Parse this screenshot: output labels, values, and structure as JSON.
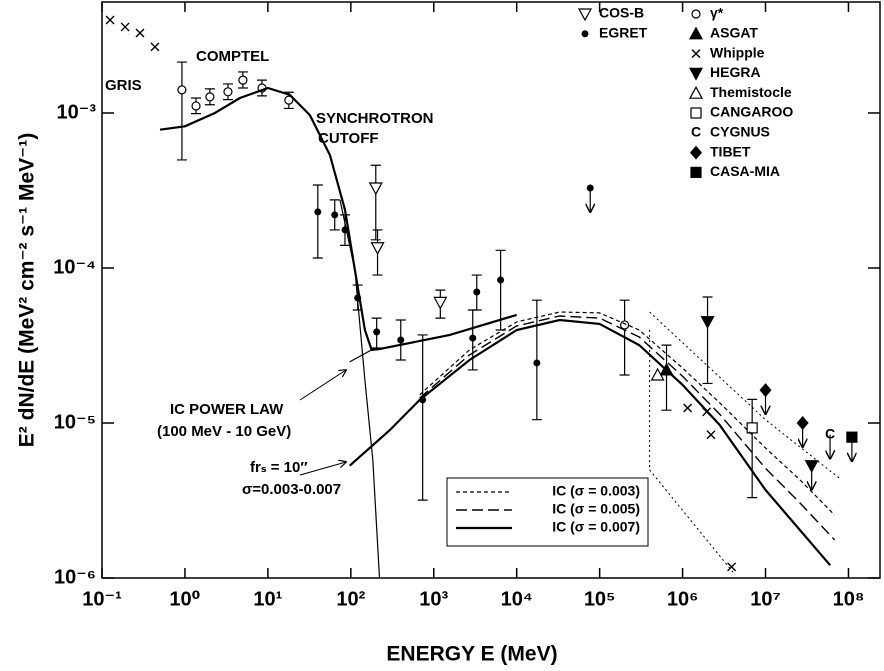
{
  "chart_data": {
    "type": "scatter",
    "x_label": "ENERGY  E  (MeV)",
    "y_label": "E² dN/dE (MeV² cm⁻² s⁻¹ MeV⁻¹)",
    "log_x": true,
    "log_y": true,
    "xlim": [
      0.1,
      240000000
    ],
    "ylim": [
      1e-06,
      0.0052
    ],
    "xticks": [
      {
        "value": 0.1,
        "label": "10⁻¹"
      },
      {
        "value": 1,
        "label": "10⁰"
      },
      {
        "value": 10,
        "label": "10¹"
      },
      {
        "value": 100,
        "label": "10²"
      },
      {
        "value": 1000,
        "label": "10³"
      },
      {
        "value": 10000,
        "label": "10⁴"
      },
      {
        "value": 100000,
        "label": "10⁵"
      },
      {
        "value": 1000000,
        "label": "10⁶"
      },
      {
        "value": 10000000,
        "label": "10⁷"
      },
      {
        "value": 100000000,
        "label": "10⁸"
      }
    ],
    "yticks": [
      {
        "value": 0.001,
        "label": "10⁻³"
      },
      {
        "value": 0.0001,
        "label": "10⁻⁴"
      },
      {
        "value": 1e-05,
        "label": "10⁻⁵"
      },
      {
        "value": 1e-06,
        "label": "10⁻⁶"
      }
    ],
    "annotations": [
      "GRIS",
      "COMPTEL",
      "SYNCHROTRON",
      "CUTOFF",
      "IC POWER LAW",
      "(100 MeV - 10 GeV)",
      "frₛ = 10″",
      "σ=0.003-0.007"
    ],
    "series": [
      {
        "name": "COS-B",
        "type": "scatter",
        "marker": "triangle-down-open",
        "color": "#000",
        "x": [
          200,
          210,
          1200
        ],
        "values": [
          0.000328,
          0.000135,
          6e-05
        ],
        "yerr_low": [
          0.000152,
          9e-05,
          4.75e-05
        ],
        "yerr_high": [
          0.00046,
          0.000176,
          7.2e-05
        ]
      },
      {
        "name": "EGRET",
        "type": "scatter",
        "marker": "dot",
        "color": "#000",
        "x": [
          40,
          64,
          85,
          121,
          205,
          400,
          735,
          2950,
          3300,
          6400,
          17500,
          77000
        ],
        "values": [
          0.00023,
          0.00022,
          0.000176,
          6.4e-05,
          3.87e-05,
          3.43e-05,
          1.41e-05,
          3.53e-05,
          7e-05,
          8.37e-05,
          2.44e-05,
          0.000328
        ],
        "yerr_low": [
          0.000116,
          0.000176,
          0.00014,
          5.36e-05,
          3.05e-05,
          2.55e-05,
          3.18e-06,
          2.2e-05,
          5.36e-05,
          3.98e-05,
          1.05e-05,
          null
        ],
        "yerr_high": [
          0.000343,
          0.000275,
          0.00022,
          7.76e-05,
          4.75e-05,
          4.62e-05,
          3.7e-05,
          5.36e-05,
          9e-05,
          0.00013,
          6.2e-05,
          null
        ],
        "upper_limits": [
          false,
          false,
          false,
          false,
          false,
          false,
          false,
          false,
          false,
          false,
          false,
          true
        ]
      },
      {
        "name": "γ*",
        "type": "scatter",
        "marker": "circle-open",
        "color": "#000",
        "x": [
          200000
        ],
        "values": [
          4.29e-05
        ],
        "yerr_low": [
          2.04e-05
        ],
        "yerr_high": [
          6.2e-05
        ]
      },
      {
        "name": "ASGAT",
        "type": "scatter",
        "marker": "triangle-filled",
        "color": "#000",
        "x": [
          640000
        ],
        "values": [
          2.2e-05
        ],
        "yerr_low": [
          1.21e-05
        ],
        "yerr_high": [
          3.18e-05
        ]
      },
      {
        "name": "Whipple",
        "type": "scatter",
        "marker": "x",
        "color": "#000",
        "x": [
          1150000,
          1950000,
          2200000,
          3900000
        ],
        "values": [
          1.25e-05,
          1.18e-05,
          8.4e-06,
          1.18e-06
        ]
      },
      {
        "name": "HEGRA",
        "type": "scatter",
        "marker": "triangle-down-filled",
        "color": "#000",
        "x": [
          2000000,
          36000000
        ],
        "values": [
          4.5e-05,
          5.3e-06
        ],
        "yerr_low": [
          1.8e-05,
          null
        ],
        "yerr_high": [
          6.5e-05,
          null
        ],
        "upper_limits": [
          false,
          true
        ]
      },
      {
        "name": "Themistocle",
        "type": "scatter",
        "marker": "triangle-open",
        "color": "#000",
        "x": [
          500000
        ],
        "values": [
          2.04e-05
        ]
      },
      {
        "name": "CANGAROO",
        "type": "scatter",
        "marker": "square-open",
        "color": "#000",
        "x": [
          6900000
        ],
        "values": [
          9.3e-06
        ],
        "yerr_low": [
          3.3e-06
        ],
        "yerr_high": [
          1.42e-05
        ]
      },
      {
        "name": "CYGNUS",
        "type": "scatter",
        "marker": "C",
        "color": "#000",
        "x": [
          60000000
        ],
        "values": [
          8.4e-06
        ],
        "upper_limits": [
          true
        ]
      },
      {
        "name": "TIBET",
        "type": "scatter",
        "marker": "diamond-filled",
        "color": "#000",
        "x": [
          10000000,
          28000000
        ],
        "values": [
          1.63e-05,
          1e-05
        ],
        "upper_limits": [
          true,
          true
        ]
      },
      {
        "name": "CASA-MIA",
        "type": "scatter",
        "marker": "square-filled",
        "color": "#000",
        "x": [
          110000000
        ],
        "values": [
          8.1e-06
        ],
        "upper_limits": [
          true
        ]
      },
      {
        "type": "scatter",
        "marker": "x",
        "color": "#000",
        "x": [
          0.125,
          0.19,
          0.287,
          0.435
        ],
        "values": [
          0.00398,
          0.00359,
          0.00328,
          0.00267
        ]
      },
      {
        "type": "scatter",
        "marker": "circle-open",
        "color": "#000",
        "x": [
          0.92,
          1.36,
          2.0,
          3.3,
          5.0,
          8.5,
          17.9
        ],
        "values": [
          0.00141,
          0.00111,
          0.00127,
          0.00137,
          0.00163,
          0.00145,
          0.00121
        ],
        "yerr_low": [
          0.000498,
          0.00099,
          0.00113,
          0.00122,
          0.00145,
          0.00129,
          0.00107
        ],
        "yerr_high": [
          0.00213,
          0.00125,
          0.00143,
          0.00154,
          0.00184,
          0.00163,
          0.00136
        ]
      },
      {
        "type": "line",
        "style": "solid",
        "width": 2.2,
        "color": "#000",
        "x": [
          0.5,
          1,
          2.3,
          4.6,
          10,
          18.4,
          32,
          56,
          85,
          112,
          148,
          178,
          222,
          1560,
          10000
        ],
        "values": [
          0.00078,
          0.00082,
          0.001,
          0.00125,
          0.00145,
          0.00131,
          0.00097,
          0.000536,
          0.000237,
          9.7e-05,
          3.98e-05,
          2.96e-05,
          3e-05,
          3.7e-05,
          4.98e-05
        ]
      },
      {
        "type": "line",
        "style": "solid",
        "width": 1.2,
        "color": "#000",
        "x": [
          74,
          112,
          148,
          184,
          222,
          null,
          97,
          178
        ],
        "values": [
          0.000275,
          9.7e-05,
          1.89e-05,
          5.8e-06,
          1e-06,
          null,
          2.48e-05,
          2.96e-05
        ]
      },
      {
        "type": "line",
        "style": "dotted",
        "width": 1,
        "color": "#000",
        "x": [
          400000,
          10000000,
          78000000,
          null,
          400000,
          400000,
          4300000
        ],
        "values": [
          5.2e-05,
          1.05e-05,
          4.4e-06,
          null,
          3.98e-05,
          4.98e-06,
          1.05e-06
        ]
      },
      {
        "name": "IC (σ = 0.003)",
        "type": "line",
        "style": "dashed",
        "width": 1.2,
        "color": "#000",
        "x": [
          676,
          2700,
          10000,
          33000,
          100000,
          300000,
          1000000,
          2800000,
          10000000,
          26000000,
          68000000
        ],
        "values": [
          1.52e-05,
          2.96e-05,
          4.49e-05,
          5.2e-05,
          5.13e-05,
          3.98e-05,
          2.26e-05,
          1.35e-05,
          6.9e-06,
          4.3e-06,
          2.55e-06
        ]
      },
      {
        "name": "IC (σ = 0.005)",
        "type": "line",
        "style": "longdash",
        "width": 1.4,
        "color": "#000",
        "x": [
          676,
          2700,
          10000,
          33000,
          100000,
          300000,
          1000000,
          2800000,
          10000000,
          26000000,
          68000000
        ],
        "values": [
          1.45e-05,
          2.75e-05,
          4.23e-05,
          4.9e-05,
          4.75e-05,
          3.59e-05,
          2e-05,
          1.14e-05,
          5.1e-06,
          3.05e-06,
          1.76e-06
        ]
      },
      {
        "name": "IC (σ = 0.007)",
        "type": "line",
        "style": "solid",
        "width": 2.2,
        "color": "#000",
        "x": [
          97,
          295,
          676,
          2700,
          10000,
          33000,
          100000,
          300000,
          1000000,
          2800000,
          10000000,
          26000000,
          60000000
        ],
        "values": [
          5.3e-06,
          9e-06,
          1.41e-05,
          2.55e-05,
          3.98e-05,
          4.62e-05,
          4.36e-05,
          3.18e-05,
          1.76e-05,
          9.7e-06,
          3.7e-06,
          2.04e-06,
          1.21e-06
        ]
      }
    ]
  }
}
